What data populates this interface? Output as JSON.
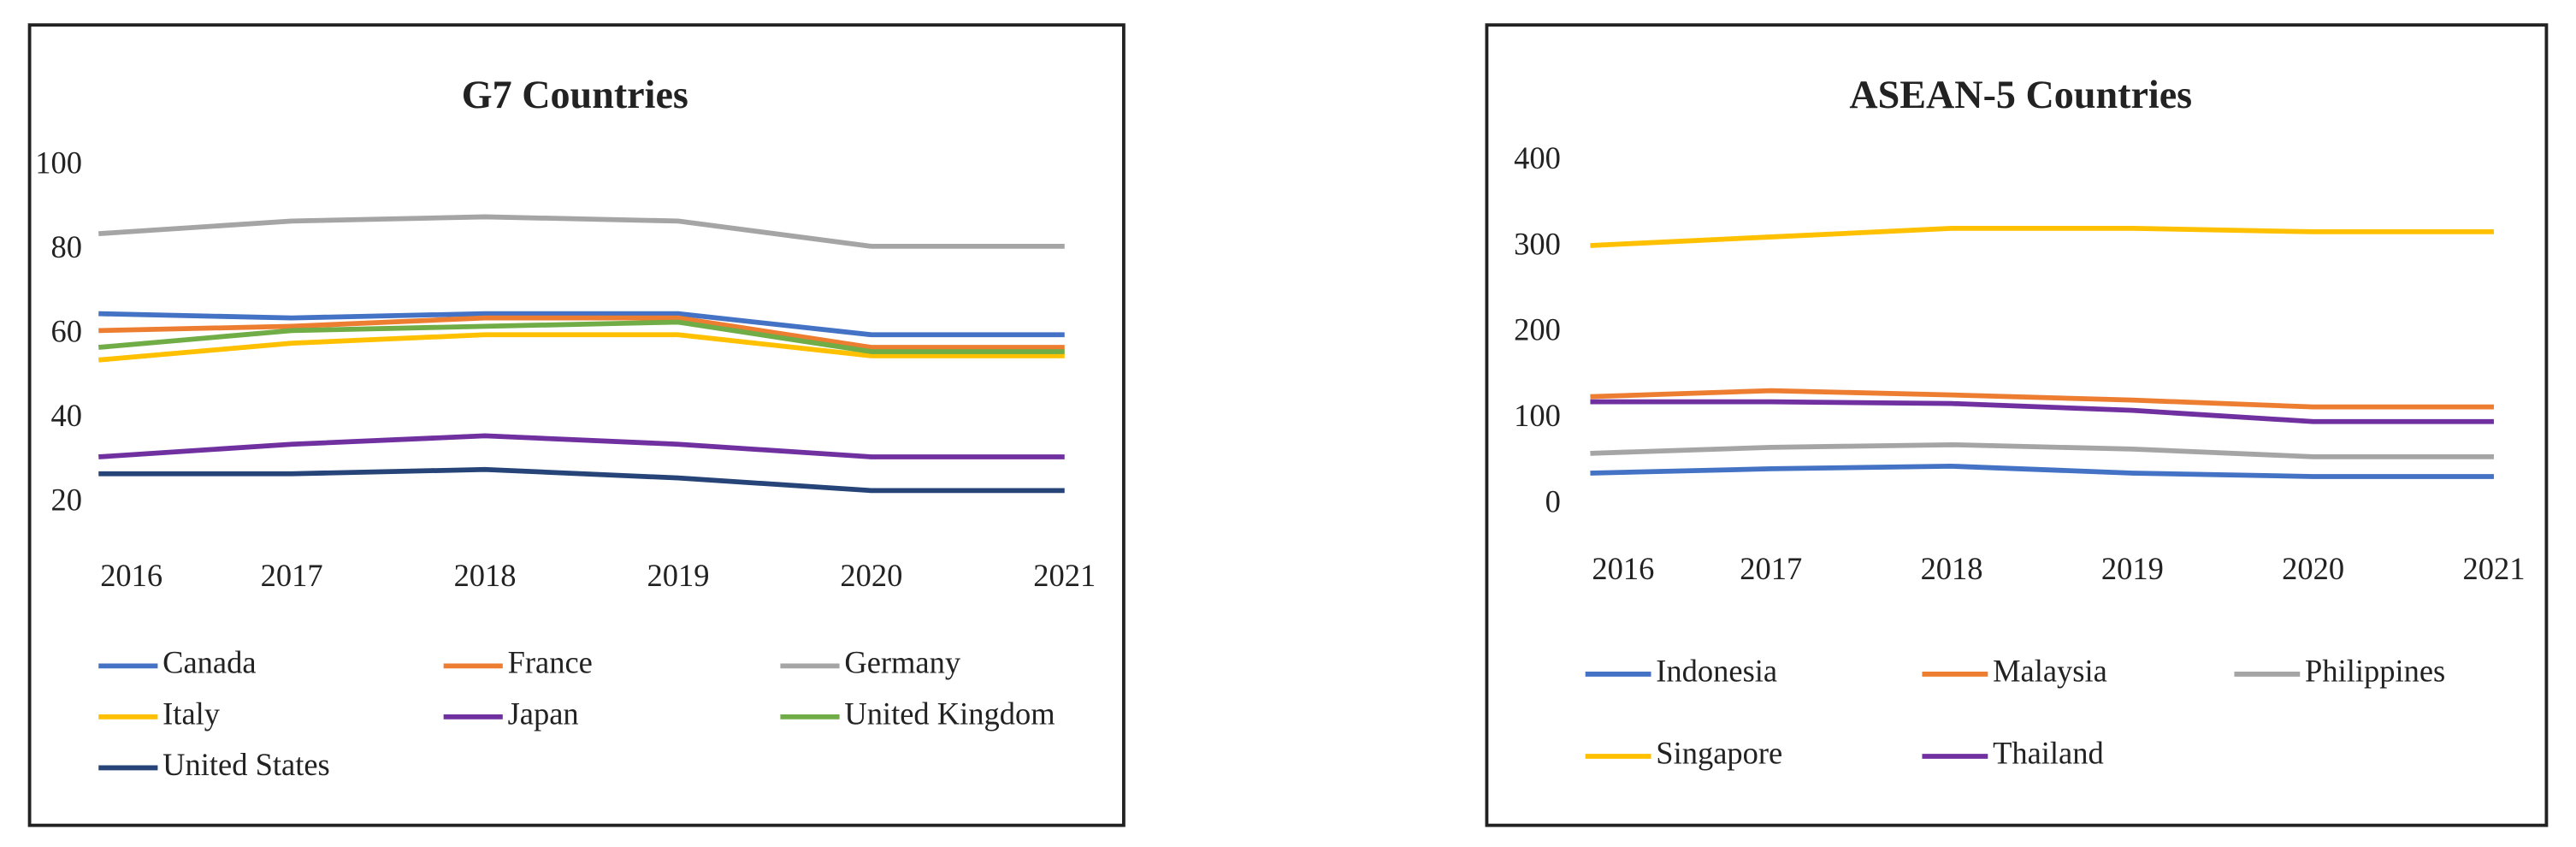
{
  "chart_data": [
    {
      "type": "line",
      "title": "G7 Countries",
      "categories": [
        "2016",
        "2017",
        "2018",
        "2019",
        "2020",
        "2021"
      ],
      "ylim": [
        20,
        100
      ],
      "yticks": [
        20,
        40,
        60,
        80,
        100
      ],
      "grid": false,
      "series": [
        {
          "name": "Canada",
          "color": "#4472c4",
          "values": [
            65,
            64,
            65,
            65,
            60,
            60
          ]
        },
        {
          "name": "France",
          "color": "#ed7d31",
          "values": [
            61,
            62,
            64,
            64,
            57,
            57
          ]
        },
        {
          "name": "Germany",
          "color": "#a5a5a5",
          "values": [
            84,
            87,
            88,
            87,
            81,
            81
          ]
        },
        {
          "name": "Italy",
          "color": "#ffc000",
          "values": [
            54,
            58,
            60,
            60,
            55,
            55
          ]
        },
        {
          "name": "Japan",
          "color": "#7030a0",
          "values": [
            31,
            34,
            36,
            34,
            31,
            31
          ]
        },
        {
          "name": "United Kingdom",
          "color": "#70ad47",
          "values": [
            57,
            61,
            62,
            63,
            56,
            56
          ]
        },
        {
          "name": "United States",
          "color": "#264478",
          "values": [
            27,
            27,
            28,
            26,
            23,
            23
          ]
        }
      ]
    },
    {
      "type": "line",
      "title": "ASEAN-5 Countries",
      "categories": [
        "2016",
        "2017",
        "2018",
        "2019",
        "2020",
        "2021"
      ],
      "ylim": [
        0,
        400
      ],
      "yticks": [
        0,
        100,
        200,
        300,
        400
      ],
      "grid": false,
      "series": [
        {
          "name": "Indonesia",
          "color": "#4472c4",
          "values": [
            37,
            42,
            45,
            37,
            33,
            33
          ]
        },
        {
          "name": "Malaysia",
          "color": "#ed7d31",
          "values": [
            126,
            133,
            128,
            122,
            114,
            114
          ]
        },
        {
          "name": "Philippines",
          "color": "#a5a5a5",
          "values": [
            60,
            67,
            70,
            65,
            56,
            56
          ]
        },
        {
          "name": "Singapore",
          "color": "#ffc000",
          "values": [
            302,
            312,
            322,
            322,
            318,
            318
          ]
        },
        {
          "name": "Thailand",
          "color": "#7030a0",
          "values": [
            120,
            120,
            118,
            110,
            97,
            97
          ]
        }
      ]
    }
  ]
}
